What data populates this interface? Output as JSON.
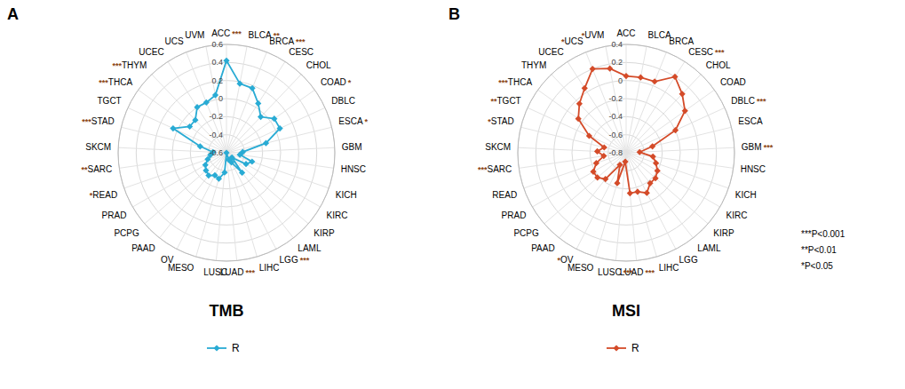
{
  "chart_data": [
    {
      "type": "radar",
      "title": "TMB",
      "panel_label": "A",
      "categories": [
        "ACC",
        "BLCA",
        "BRCA",
        "CESC",
        "CHOL",
        "COAD",
        "DBLC",
        "ESCA",
        "GBM",
        "HNSC",
        "KICH",
        "KIRC",
        "KIRP",
        "LAML",
        "LGG",
        "LIHC",
        "LUAD",
        "LUSC",
        "MESO",
        "OV",
        "PAAD",
        "PCPG",
        "PRAD",
        "READ",
        "SARC",
        "SKCM",
        "STAD",
        "TGCT",
        "THCA",
        "THYM",
        "UCEC",
        "UCS",
        "UVM"
      ],
      "series": [
        {
          "name": "R",
          "color": "#29ABD4",
          "marker": "diamond",
          "values": [
            0.42,
            0.18,
            0.17,
            0.05,
            -0.05,
            0.05,
            0.05,
            -0.15,
            -0.42,
            -0.45,
            -0.3,
            -0.35,
            -0.52,
            -0.32,
            -0.48,
            -0.52,
            -0.6,
            -0.38,
            -0.3,
            -0.32,
            -0.28,
            -0.3,
            -0.33,
            -0.38,
            -0.42,
            -0.45,
            -0.3,
            0.05,
            -0.1,
            -0.1,
            0.0,
            0.0,
            0.05
          ]
        }
      ],
      "significance": [
        "***",
        "**",
        "***",
        null,
        null,
        "*",
        null,
        "*",
        null,
        null,
        null,
        null,
        null,
        null,
        "***",
        null,
        "***",
        null,
        null,
        null,
        null,
        null,
        null,
        "*",
        "**",
        null,
        "***",
        null,
        "***",
        "***",
        null,
        null,
        null
      ],
      "significance_color": "#8B4513",
      "ylim": [
        -0.6,
        0.6
      ],
      "yticks": [
        -0.6,
        -0.4,
        -0.2,
        0,
        0.2,
        0.4,
        0.6
      ],
      "grid": true,
      "legend": "bottom"
    },
    {
      "type": "radar",
      "title": "MSI",
      "panel_label": "B",
      "categories": [
        "ACC",
        "BLCA",
        "BRCA",
        "CESC",
        "CHOL",
        "COAD",
        "DBLC",
        "ESCA",
        "GBM",
        "HNSC",
        "KICH",
        "KIRC",
        "KIRP",
        "LAML",
        "LGG",
        "LIHC",
        "LUAD",
        "LUSC",
        "MESO",
        "OV",
        "PAAD",
        "PCPG",
        "PRAD",
        "READ",
        "SARC",
        "SKCM",
        "STAD",
        "TGCT",
        "THCA",
        "THYM",
        "UCEC",
        "UCS",
        "UVM"
      ],
      "series": [
        {
          "name": "R",
          "color": "#D44B29",
          "marker": "diamond",
          "values": [
            0.05,
            0.05,
            0.05,
            0.2,
            0.1,
            0.0,
            -0.2,
            -0.5,
            -0.65,
            -0.5,
            -0.45,
            -0.4,
            -0.37,
            -0.37,
            -0.3,
            -0.35,
            -0.35,
            -0.7,
            -0.45,
            -0.65,
            -0.43,
            -0.38,
            -0.38,
            -0.45,
            -0.55,
            -0.48,
            -0.55,
            -0.35,
            -0.15,
            -0.05,
            0.05,
            0.2,
            0.15
          ]
        }
      ],
      "significance": [
        null,
        null,
        null,
        "***",
        null,
        null,
        "***",
        null,
        "***",
        null,
        null,
        null,
        null,
        null,
        null,
        null,
        "***",
        "***",
        null,
        "*",
        null,
        null,
        null,
        null,
        "***",
        null,
        "*",
        "**",
        "***",
        null,
        null,
        "*",
        "*"
      ],
      "significance_color": "#8B4513",
      "ylim": [
        -0.8,
        0.4
      ],
      "yticks": [
        -0.8,
        -0.6,
        -0.4,
        -0.2,
        0,
        0.2,
        0.4
      ],
      "grid": true,
      "legend": "bottom",
      "annotations": [
        "***P<0.001",
        "**P<0.01",
        "*P<0.05"
      ]
    }
  ]
}
